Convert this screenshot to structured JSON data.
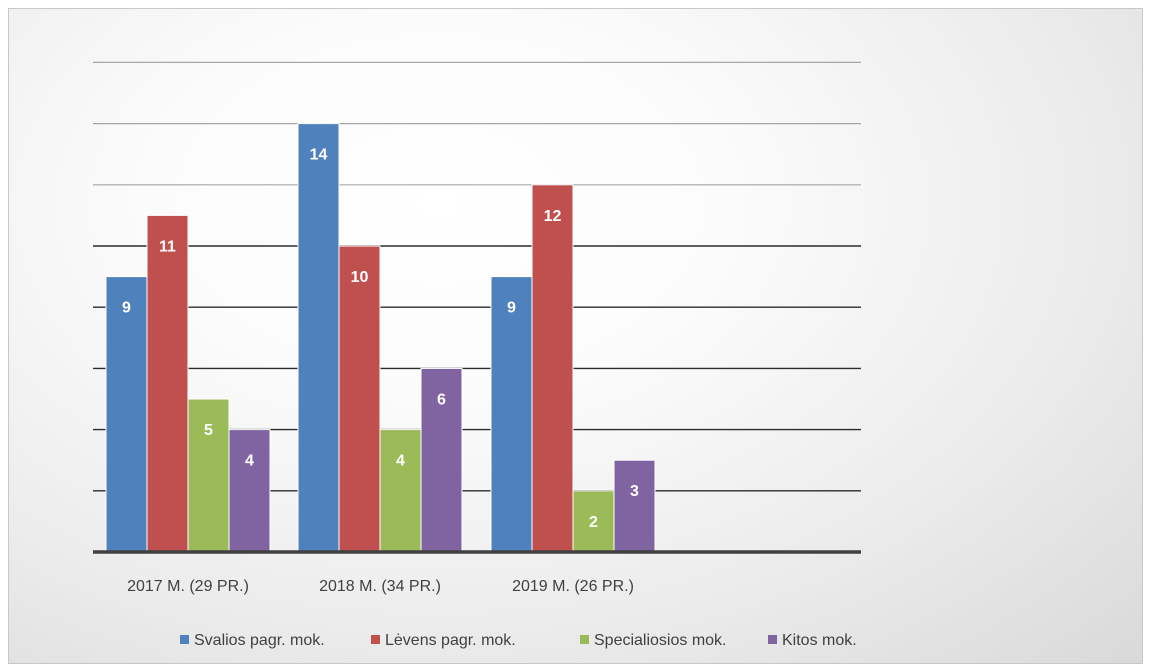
{
  "chart_data": {
    "type": "bar",
    "categories": [
      "2017 M. (29 PR.)",
      "2018 M. (34 PR.)",
      "2019 M. (26 PR.)"
    ],
    "series": [
      {
        "name": "Svalios pagr. mok.",
        "values": [
          9,
          14,
          9
        ],
        "color": "#4f81bd"
      },
      {
        "name": "Lėvens pagr. mok.",
        "values": [
          11,
          10,
          12
        ],
        "color": "#c0504d"
      },
      {
        "name": "Specialiosios mok.",
        "values": [
          5,
          4,
          2
        ],
        "color": "#9bbb59"
      },
      {
        "name": "Kitos mok.",
        "values": [
          4,
          6,
          3
        ],
        "color": "#8064a2"
      }
    ],
    "ylim": [
      0,
      16
    ],
    "gridlines": true,
    "y_tick_labels_shown": false,
    "legend_position": "bottom"
  }
}
